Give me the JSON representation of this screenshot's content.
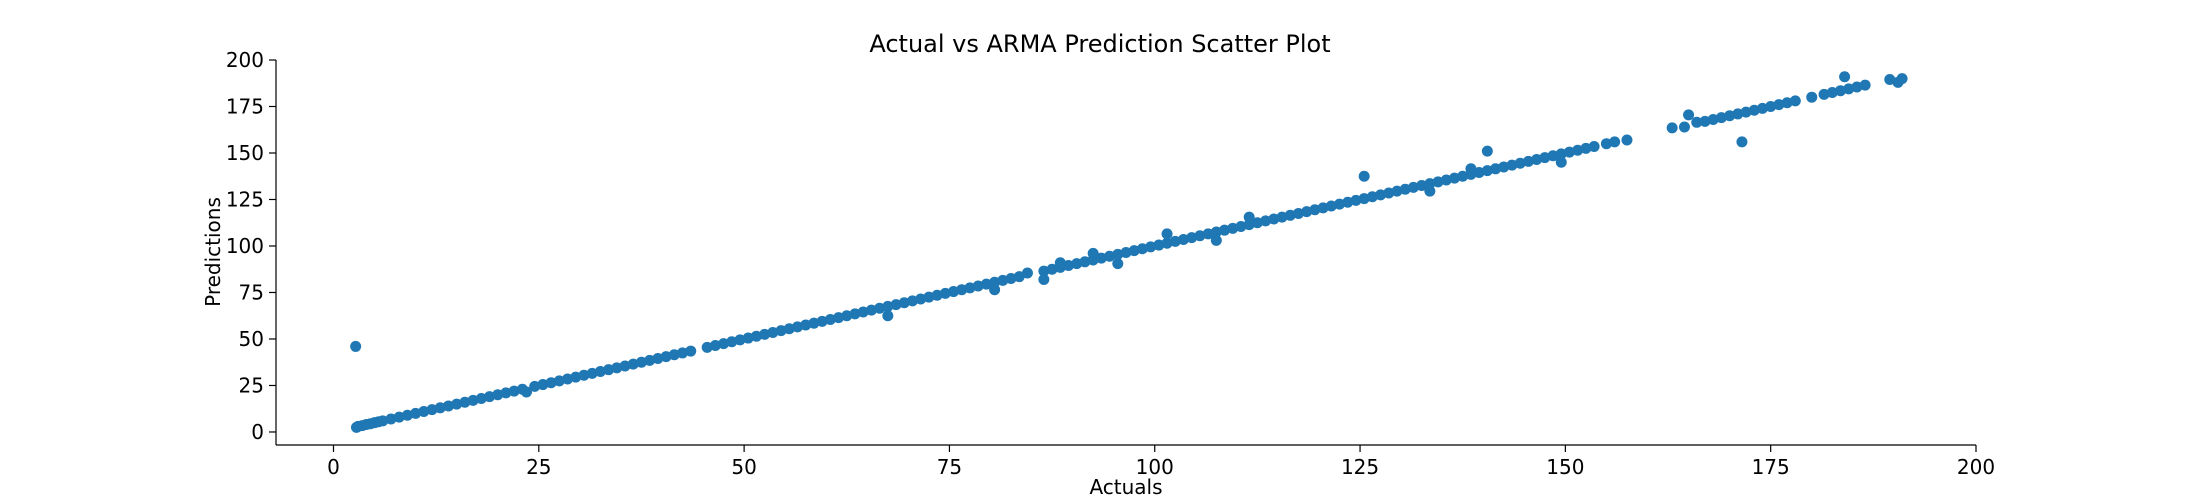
{
  "chart_data": {
    "type": "scatter",
    "title": "Actual vs ARMA Prediction Scatter Plot",
    "xlabel": "Actuals",
    "ylabel": "Predictions",
    "xlim": [
      -7,
      200
    ],
    "ylim": [
      -7,
      200
    ],
    "xticks": [
      0,
      25,
      50,
      75,
      100,
      125,
      150,
      175,
      200
    ],
    "yticks": [
      0,
      25,
      50,
      75,
      100,
      125,
      150,
      175,
      200
    ],
    "grid": false,
    "legend": "none",
    "color": "#1f77b4",
    "series": [
      {
        "x": [
          2.8,
          3.0,
          3.5,
          4.0,
          4.5,
          5.0,
          5.5,
          6.0,
          7.0,
          8.0,
          9.0,
          10.0,
          11.0,
          12.0,
          13.0,
          14.0,
          15.0,
          16.0,
          17.0,
          18.0,
          19.0,
          20.0,
          21.0,
          22.0,
          23.0,
          24.5,
          25.5,
          26.5,
          27.5,
          28.5,
          29.5,
          30.5,
          31.5,
          32.5,
          33.5,
          34.5,
          35.5,
          36.5,
          37.5,
          38.5,
          39.5,
          40.5,
          41.5,
          42.5,
          43.5,
          45.5,
          46.5,
          47.5,
          48.5,
          49.5,
          50.5,
          51.5,
          52.5,
          53.5,
          54.5,
          55.5,
          56.5,
          57.5,
          58.5,
          59.5,
          60.5,
          61.5,
          62.5,
          63.5,
          64.5,
          65.5,
          66.5,
          67.5,
          68.5,
          69.5,
          70.5,
          71.5,
          72.5,
          73.5,
          74.5,
          75.5,
          76.5,
          77.5,
          78.5,
          79.5,
          80.5,
          81.5,
          82.5,
          83.5,
          86.5,
          87.5,
          88.5,
          89.5,
          90.5,
          91.5,
          92.5,
          93.5,
          94.5,
          95.5,
          96.5,
          97.5,
          98.5,
          99.5,
          100.5,
          101.5,
          102.5,
          103.5,
          104.5,
          105.5,
          106.5,
          107.5,
          108.5,
          109.5,
          110.5,
          111.5,
          112.5,
          113.5,
          114.5,
          115.5,
          116.5,
          117.5,
          118.5,
          119.5,
          120.5,
          121.5,
          122.5,
          123.5,
          124.5,
          125.5,
          126.5,
          127.5,
          128.5,
          129.5,
          130.5,
          131.5,
          132.5,
          133.5,
          134.5,
          135.5,
          136.5,
          137.5,
          138.5,
          139.5,
          140.5,
          141.5,
          142.5,
          143.5,
          144.5,
          145.5,
          146.5,
          147.5,
          148.5,
          149.5,
          150.5,
          151.5,
          152.5,
          153.5,
          155.0,
          156.0,
          157.5,
          163.0,
          164.5,
          166.0,
          167.0,
          168.0,
          169.0,
          170.0,
          171.0,
          172.0,
          173.0,
          174.0,
          175.0,
          176.0,
          177.0,
          178.0,
          180.0,
          181.5,
          182.5,
          183.5,
          184.5,
          185.5,
          186.5,
          189.5,
          190.5,
          191.0,
          2.7,
          23.5,
          67.5,
          80.5,
          84.5,
          86.5,
          88.5,
          92.5,
          95.5,
          101.5,
          107.5,
          111.5,
          125.5,
          133.5,
          138.5,
          140.5,
          149.5,
          165.0,
          171.5,
          184.0
        ],
        "y": [
          2.5,
          3.0,
          3.4,
          4.0,
          4.4,
          5.0,
          5.5,
          6.0,
          7.0,
          8.0,
          9.0,
          10.0,
          11.0,
          12.0,
          13.0,
          14.0,
          15.0,
          16.0,
          17.0,
          18.0,
          19.0,
          20.0,
          21.0,
          22.0,
          23.0,
          24.5,
          25.5,
          26.5,
          27.5,
          28.5,
          29.5,
          30.5,
          31.5,
          32.5,
          33.5,
          34.5,
          35.5,
          36.5,
          37.5,
          38.5,
          39.5,
          40.5,
          41.5,
          42.5,
          43.5,
          45.5,
          46.5,
          47.5,
          48.5,
          49.5,
          50.5,
          51.5,
          52.5,
          53.5,
          54.5,
          55.5,
          56.5,
          57.5,
          58.5,
          59.5,
          60.5,
          61.5,
          62.5,
          63.5,
          64.5,
          65.5,
          66.5,
          67.5,
          68.5,
          69.5,
          70.5,
          71.5,
          72.5,
          73.5,
          74.5,
          75.5,
          76.5,
          77.5,
          78.5,
          79.5,
          80.5,
          81.5,
          82.5,
          83.5,
          86.5,
          87.5,
          88.5,
          89.5,
          90.5,
          91.5,
          92.5,
          93.5,
          94.5,
          95.5,
          96.5,
          97.5,
          98.5,
          99.5,
          100.5,
          101.5,
          102.5,
          103.5,
          104.5,
          105.5,
          106.5,
          107.5,
          108.5,
          109.5,
          110.5,
          111.5,
          112.5,
          113.5,
          114.5,
          115.5,
          116.5,
          117.5,
          118.5,
          119.5,
          120.5,
          121.5,
          122.5,
          123.5,
          124.5,
          125.5,
          126.5,
          127.5,
          128.5,
          129.5,
          130.5,
          131.5,
          132.5,
          133.5,
          134.5,
          135.5,
          136.5,
          137.5,
          138.5,
          139.5,
          140.5,
          141.5,
          142.5,
          143.5,
          144.5,
          145.5,
          146.5,
          147.5,
          148.5,
          149.5,
          150.5,
          151.5,
          152.5,
          153.5,
          155.0,
          156.0,
          157.0,
          163.5,
          164.0,
          166.5,
          167.0,
          168.0,
          169.0,
          170.0,
          171.0,
          172.0,
          173.0,
          174.0,
          175.0,
          176.0,
          177.0,
          178.0,
          180.0,
          181.5,
          182.5,
          183.5,
          184.5,
          185.5,
          186.5,
          189.5,
          188.0,
          190.0,
          46.0,
          21.5,
          62.5,
          76.5,
          85.5,
          82.0,
          91.0,
          96.0,
          90.5,
          106.5,
          103.0,
          115.5,
          137.5,
          129.5,
          141.5,
          151.0,
          145.0,
          170.5,
          156.0,
          191.0
        ]
      }
    ]
  }
}
